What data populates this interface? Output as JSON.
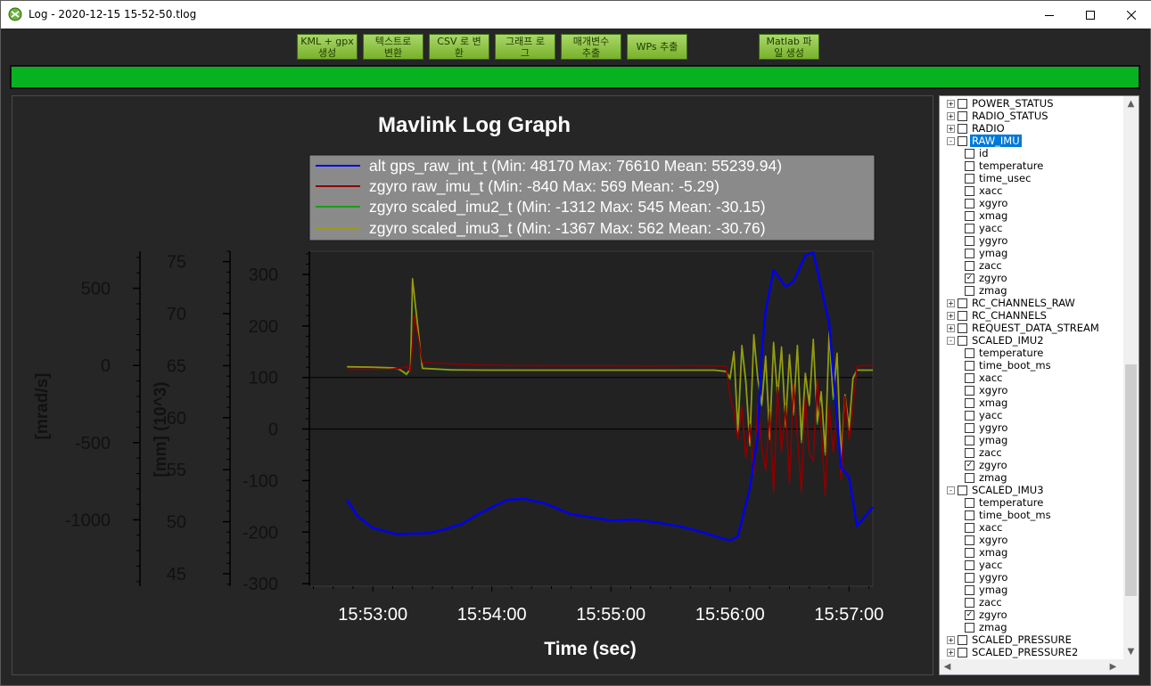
{
  "window": {
    "title": "Log - 2020-12-15 15-52-50.tlog"
  },
  "toolbar": {
    "buttons": [
      {
        "label": "KML + gpx\n생성"
      },
      {
        "label": "텍스트로\n변환"
      },
      {
        "label": "CSV 로 변\n환"
      },
      {
        "label": "그래프 로\n그"
      },
      {
        "label": "매개변수\n추출"
      },
      {
        "label": "WPs 추출"
      },
      {
        "label": "Matlab 파\n일 생성"
      }
    ]
  },
  "progress": {
    "value": 1.0,
    "color": "#07b220"
  },
  "chart_data": {
    "type": "line",
    "title": "Mavlink Log Graph",
    "xlabel": "Time (sec)",
    "x_ticks": [
      "15:53:00",
      "15:54:00",
      "15:55:00",
      "15:56:00",
      "15:57:00"
    ],
    "x_tick_seconds": [
      60,
      120,
      180,
      240,
      300
    ],
    "xlim": [
      28,
      312
    ],
    "y_axes": [
      {
        "label": "[mrad/s]",
        "ticks": [
          "500",
          "0",
          "-500",
          "-1000"
        ],
        "tick_values": [
          500,
          0,
          -500,
          -1000
        ],
        "ylim": [
          -1430,
          740
        ]
      },
      {
        "label": "[mm] (10^3)",
        "ticks": [
          "75",
          "70",
          "65",
          "60",
          "55",
          "50",
          "45"
        ],
        "tick_values": [
          75,
          70,
          65,
          60,
          55,
          50,
          45
        ],
        "ylim": [
          43.8,
          76
        ]
      },
      {
        "label": "",
        "ticks": [
          "300",
          "200",
          "100",
          "0",
          "-100",
          "-200",
          "-300"
        ],
        "tick_values": [
          300,
          200,
          100,
          0,
          -100,
          -200,
          -300
        ],
        "ylim": [
          -305,
          345
        ]
      }
    ],
    "legend": {
      "placement": "top",
      "entries": [
        "alt gps_raw_int_t (Min: 48170 Max: 76610 Mean: 55239.94)",
        "zgyro raw_imu_t (Min: -840 Max: 569 Mean: -5.29)",
        "zgyro scaled_imu2_t (Min: -1312 Max: 545 Mean: -30.15)",
        "zgyro scaled_imu3_t (Min: -1367 Max: 562 Mean: -30.76)"
      ]
    },
    "series": [
      {
        "name": "alt gps_raw_int_t",
        "color": "#0000ee",
        "x": [
          47,
          52,
          60,
          72,
          88,
          95,
          105,
          112,
          120,
          128,
          136,
          141,
          146,
          154,
          160,
          168,
          180,
          192,
          204,
          216,
          226,
          236,
          240,
          244,
          250,
          254,
          256,
          258,
          262,
          268,
          272,
          278,
          282,
          290,
          296,
          300,
          304,
          308,
          312
        ],
        "y": [
          52.1,
          50.6,
          49.4,
          48.8,
          48.9,
          49.2,
          49.8,
          50.6,
          51.4,
          52.1,
          52.2,
          52.0,
          51.8,
          51.2,
          50.7,
          50.5,
          50.1,
          50.2,
          49.9,
          49.5,
          49.0,
          48.4,
          48.2,
          48.6,
          53.2,
          58.3,
          66.2,
          70.3,
          74.2,
          72.6,
          73.1,
          75.6,
          75.9,
          69.1,
          55.2,
          54.3,
          49.6,
          50.5,
          51.4
        ]
      },
      {
        "name": "zgyro raw_imu_t",
        "color": "#8b0000",
        "x": [
          47,
          60,
          68,
          73,
          75,
          77,
          79,
          81,
          85,
          100,
          120,
          140,
          160,
          180,
          200,
          220,
          232,
          238,
          240,
          242,
          244,
          246,
          248,
          250,
          252,
          254,
          256,
          258,
          260,
          262,
          264,
          266,
          268,
          270,
          272,
          274,
          276,
          278,
          280,
          282,
          284,
          286,
          288,
          290,
          292,
          294,
          296,
          298,
          300,
          302,
          304,
          308,
          312
        ],
        "y": [
          -25,
          -25,
          -24,
          -20,
          -15,
          -5,
          -40,
          320,
          20,
          10,
          2,
          -1,
          -2,
          -2,
          -3,
          -2,
          -3,
          -5,
          -200,
          -300,
          -480,
          -260,
          -600,
          -380,
          -700,
          -250,
          -520,
          -680,
          -300,
          -820,
          -140,
          -560,
          -260,
          -760,
          -120,
          -450,
          -820,
          -200,
          -570,
          -620,
          -90,
          -410,
          -840,
          -260,
          -560,
          -300,
          -740,
          -200,
          -480,
          -280,
          -5,
          0,
          -2
        ]
      },
      {
        "name": "zgyro scaled_imu2_t",
        "color": "#1a9d1a",
        "x": [
          47,
          60,
          70,
          73,
          75,
          77,
          79,
          80,
          85,
          100,
          120,
          140,
          160,
          180,
          200,
          220,
          232,
          238,
          240,
          242,
          244,
          246,
          248,
          250,
          252,
          254,
          256,
          258,
          260,
          262,
          264,
          266,
          268,
          270,
          272,
          274,
          276,
          278,
          280,
          282,
          284,
          286,
          288,
          290,
          292,
          294,
          296,
          298,
          300,
          302,
          304,
          308,
          312
        ],
        "y": [
          -10,
          -12,
          -18,
          -25,
          -40,
          -60,
          -20,
          545,
          -20,
          -30,
          -30,
          -30,
          -30,
          -30,
          -30,
          -30,
          -30,
          -40,
          -90,
          80,
          -450,
          110,
          -120,
          -520,
          180,
          -90,
          -260,
          40,
          -480,
          140,
          -210,
          100,
          -400,
          60,
          -320,
          120,
          -500,
          -60,
          -260,
          150,
          -380,
          -180,
          -580,
          210,
          -220,
          60,
          -620,
          -200,
          -420,
          -90,
          -30,
          -30,
          -30
        ]
      },
      {
        "name": "zgyro scaled_imu3_t",
        "color": "#9a9a10",
        "x": [
          47,
          60,
          70,
          73,
          75,
          77,
          79,
          80,
          85,
          100,
          120,
          140,
          160,
          180,
          200,
          220,
          232,
          238,
          240,
          242,
          244,
          246,
          248,
          250,
          252,
          254,
          256,
          258,
          260,
          262,
          264,
          266,
          268,
          270,
          272,
          274,
          276,
          278,
          280,
          282,
          284,
          286,
          288,
          290,
          292,
          294,
          296,
          298,
          300,
          302,
          304,
          308,
          312
        ],
        "y": [
          -8,
          -10,
          -15,
          -22,
          -38,
          -55,
          -18,
          562,
          -18,
          -28,
          -30,
          -30,
          -30,
          -30,
          -30,
          -30,
          -30,
          -38,
          -80,
          90,
          -420,
          130,
          -100,
          -500,
          200,
          -80,
          -250,
          60,
          -460,
          150,
          -200,
          120,
          -380,
          70,
          -300,
          130,
          -480,
          -50,
          -250,
          170,
          -360,
          -170,
          -560,
          220,
          -200,
          80,
          -600,
          -190,
          -400,
          -80,
          -30,
          -30,
          -30
        ]
      }
    ],
    "grid": false,
    "background": "#222222",
    "reference_lines": [
      100,
      0
    ]
  },
  "tree": {
    "items": [
      {
        "label": "POWER_STATUS",
        "level": 0,
        "expander": "+",
        "checked": false
      },
      {
        "label": "RADIO_STATUS",
        "level": 0,
        "expander": "+",
        "checked": false
      },
      {
        "label": "RADIO",
        "level": 0,
        "expander": "+",
        "checked": false
      },
      {
        "label": "RAW_IMU",
        "level": 0,
        "expander": "-",
        "checked": false,
        "selected": true
      },
      {
        "label": "id",
        "level": 1,
        "checked": false
      },
      {
        "label": "temperature",
        "level": 1,
        "checked": false
      },
      {
        "label": "time_usec",
        "level": 1,
        "checked": false
      },
      {
        "label": "xacc",
        "level": 1,
        "checked": false
      },
      {
        "label": "xgyro",
        "level": 1,
        "checked": false
      },
      {
        "label": "xmag",
        "level": 1,
        "checked": false
      },
      {
        "label": "yacc",
        "level": 1,
        "checked": false
      },
      {
        "label": "ygyro",
        "level": 1,
        "checked": false
      },
      {
        "label": "ymag",
        "level": 1,
        "checked": false
      },
      {
        "label": "zacc",
        "level": 1,
        "checked": false
      },
      {
        "label": "zgyro",
        "level": 1,
        "checked": true
      },
      {
        "label": "zmag",
        "level": 1,
        "checked": false
      },
      {
        "label": "RC_CHANNELS_RAW",
        "level": 0,
        "expander": "+",
        "checked": false
      },
      {
        "label": "RC_CHANNELS",
        "level": 0,
        "expander": "+",
        "checked": false
      },
      {
        "label": "REQUEST_DATA_STREAM",
        "level": 0,
        "expander": "+",
        "checked": false
      },
      {
        "label": "SCALED_IMU2",
        "level": 0,
        "expander": "-",
        "checked": false
      },
      {
        "label": "temperature",
        "level": 1,
        "checked": false
      },
      {
        "label": "time_boot_ms",
        "level": 1,
        "checked": false
      },
      {
        "label": "xacc",
        "level": 1,
        "checked": false
      },
      {
        "label": "xgyro",
        "level": 1,
        "checked": false
      },
      {
        "label": "xmag",
        "level": 1,
        "checked": false
      },
      {
        "label": "yacc",
        "level": 1,
        "checked": false
      },
      {
        "label": "ygyro",
        "level": 1,
        "checked": false
      },
      {
        "label": "ymag",
        "level": 1,
        "checked": false
      },
      {
        "label": "zacc",
        "level": 1,
        "checked": false
      },
      {
        "label": "zgyro",
        "level": 1,
        "checked": true
      },
      {
        "label": "zmag",
        "level": 1,
        "checked": false
      },
      {
        "label": "SCALED_IMU3",
        "level": 0,
        "expander": "-",
        "checked": false
      },
      {
        "label": "temperature",
        "level": 1,
        "checked": false
      },
      {
        "label": "time_boot_ms",
        "level": 1,
        "checked": false
      },
      {
        "label": "xacc",
        "level": 1,
        "checked": false
      },
      {
        "label": "xgyro",
        "level": 1,
        "checked": false
      },
      {
        "label": "xmag",
        "level": 1,
        "checked": false
      },
      {
        "label": "yacc",
        "level": 1,
        "checked": false
      },
      {
        "label": "ygyro",
        "level": 1,
        "checked": false
      },
      {
        "label": "ymag",
        "level": 1,
        "checked": false
      },
      {
        "label": "zacc",
        "level": 1,
        "checked": false
      },
      {
        "label": "zgyro",
        "level": 1,
        "checked": true
      },
      {
        "label": "zmag",
        "level": 1,
        "checked": false
      },
      {
        "label": "SCALED_PRESSURE",
        "level": 0,
        "expander": "+",
        "checked": false
      },
      {
        "label": "SCALED_PRESSURE2",
        "level": 0,
        "expander": "+",
        "checked": false
      }
    ]
  }
}
